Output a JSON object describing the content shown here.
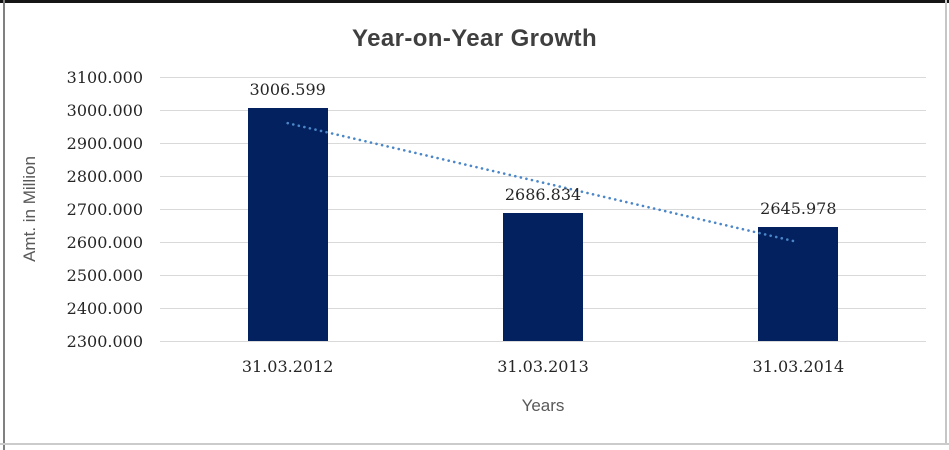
{
  "chart_data": {
    "type": "bar",
    "title": "Year-on-Year Growth",
    "categories": [
      "31.03.2012",
      "31.03.2013",
      "31.03.2014"
    ],
    "values": [
      3006.599,
      2686.834,
      2645.978
    ],
    "data_labels": [
      "3006.599",
      "2686.834",
      "2645.978"
    ],
    "xlabel": "Years",
    "ylabel": "Amt. in Million",
    "ylim": [
      2300,
      3100
    ],
    "ytick_step": 100,
    "ytick_labels": [
      "2300.000",
      "2400.000",
      "2500.000",
      "2600.000",
      "2700.000",
      "2800.000",
      "2900.000",
      "3000.000",
      "3100.000"
    ],
    "grid": true,
    "legend": "none",
    "trendline": {
      "type": "linear",
      "style": "dotted"
    },
    "colors": {
      "bar": "#02215e",
      "trend": "#4a86c8",
      "gridline": "#d9d9d9",
      "title_text": "#3f3f3f",
      "tick_text": "#262626",
      "axis_label_text": "#595959"
    }
  }
}
